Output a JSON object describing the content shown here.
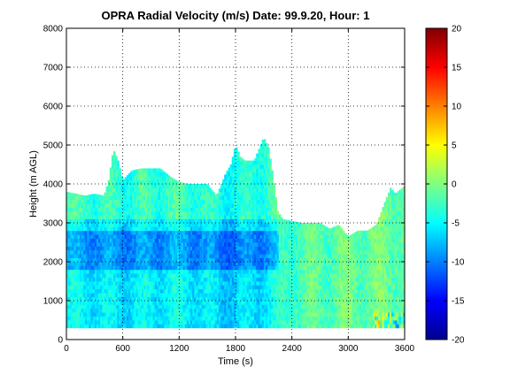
{
  "chart_data": {
    "type": "heatmap",
    "title": "OPRA Radial Velocity (m/s)  Date: 99.9.20, Hour: 1",
    "xlabel": "Time (s)",
    "ylabel": "Height (m AGL)",
    "xlim": [
      0,
      3600
    ],
    "ylim": [
      0,
      8000
    ],
    "xticks": [
      0,
      600,
      1200,
      1800,
      2400,
      3000,
      3600
    ],
    "yticks": [
      0,
      1000,
      2000,
      3000,
      4000,
      5000,
      6000,
      7000,
      8000
    ],
    "grid": true,
    "colorbar": {
      "colormap": "jet",
      "clim": [
        -20,
        20
      ],
      "ticks": [
        20,
        15,
        10,
        5,
        0,
        -5,
        -10,
        -15,
        -20
      ]
    },
    "data_floor_m": 300,
    "data_top_profile": {
      "time_s": [
        0,
        100,
        200,
        300,
        400,
        450,
        500,
        550,
        600,
        700,
        800,
        900,
        1000,
        1100,
        1200,
        1300,
        1400,
        1500,
        1600,
        1700,
        1750,
        1800,
        1850,
        1900,
        2000,
        2050,
        2100,
        2150,
        2200,
        2250,
        2300,
        2400,
        2500,
        2600,
        2700,
        2800,
        2900,
        3000,
        3100,
        3200,
        3300,
        3400,
        3450,
        3500,
        3550,
        3600
      ],
      "height_m": [
        3800,
        3750,
        3700,
        3750,
        3700,
        4100,
        4900,
        4600,
        4100,
        4350,
        4400,
        4400,
        4400,
        4200,
        4050,
        4000,
        4000,
        4000,
        3700,
        4300,
        4500,
        5000,
        4700,
        4600,
        4600,
        4900,
        5200,
        4950,
        4200,
        3300,
        3100,
        3050,
        3000,
        3000,
        3000,
        2850,
        2950,
        2650,
        2800,
        2800,
        2950,
        3600,
        3900,
        3750,
        3850,
        3950
      ]
    },
    "field_description_points": {
      "time_s": [
        0,
        600,
        1200,
        1800,
        2200,
        2400,
        3000,
        3600
      ],
      "mean_velocity_ms": [
        -5,
        -6,
        -5,
        -7,
        -5,
        -2,
        -1,
        -1
      ]
    }
  }
}
